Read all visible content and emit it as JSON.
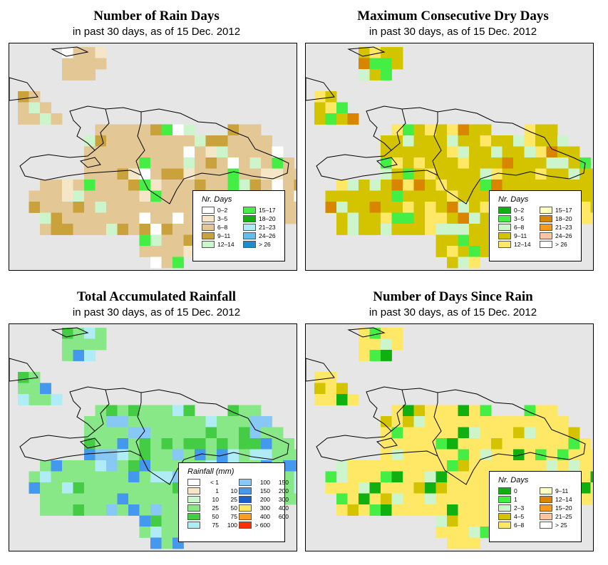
{
  "panels": [
    {
      "title": "Number of Rain Days",
      "subtitle": "in past 30 days, as of  15 Dec. 2012",
      "legend": {
        "title": "Nr. Days",
        "items": [
          {
            "label": "0–2",
            "color": "#ffffff"
          },
          {
            "label": "3–5",
            "color": "#f5e6c8"
          },
          {
            "label": "6–8",
            "color": "#e3c896"
          },
          {
            "label": "9–11",
            "color": "#c9a23c"
          },
          {
            "label": "12–14",
            "color": "#ccf5cc"
          },
          {
            "label": "15–17",
            "color": "#44ee44"
          },
          {
            "label": "18–20",
            "color": "#10b010"
          },
          {
            "label": "21–23",
            "color": "#b0ecf5"
          },
          {
            "label": "24–26",
            "color": "#60bff0"
          },
          {
            "label": "> 26",
            "color": "#1a8fd0"
          }
        ]
      }
    },
    {
      "title": "Maximum Consecutive Dry Days",
      "subtitle": "in past 30 days, as of  15 Dec. 2012",
      "legend": {
        "title": "Nr. Days",
        "items": [
          {
            "label": "0–2",
            "color": "#10b010"
          },
          {
            "label": "3–5",
            "color": "#44ee44"
          },
          {
            "label": "6–8",
            "color": "#ccf5cc"
          },
          {
            "label": "9–11",
            "color": "#d4c400"
          },
          {
            "label": "12–14",
            "color": "#ffe866"
          },
          {
            "label": "15–17",
            "color": "#ffffc0"
          },
          {
            "label": "18–20",
            "color": "#d98500"
          },
          {
            "label": "21–23",
            "color": "#f59a1a"
          },
          {
            "label": "24–26",
            "color": "#ffc4a0"
          },
          {
            "label": "> 26",
            "color": "#ffffff"
          }
        ]
      }
    },
    {
      "title": "Total Accumulated Rainfall",
      "subtitle": "in past 30 days, as of  15 Dec. 2012",
      "legend": {
        "title": "Rainfall (mm)",
        "items": [
          {
            "lo": "< 1",
            "hi": "",
            "color": "#ffffff"
          },
          {
            "lo": "1",
            "hi": "10",
            "color": "#f5e6c8"
          },
          {
            "lo": "10",
            "hi": "25",
            "color": "#ccf5cc"
          },
          {
            "lo": "25",
            "hi": "50",
            "color": "#88e888"
          },
          {
            "lo": "50",
            "hi": "75",
            "color": "#44cc44"
          },
          {
            "lo": "75",
            "hi": "100",
            "color": "#b0ecf5"
          },
          {
            "lo": "100",
            "hi": "150",
            "color": "#88c8f5"
          },
          {
            "lo": "150",
            "hi": "200",
            "color": "#4499ee"
          },
          {
            "lo": "200",
            "hi": "300",
            "color": "#1a5fd0"
          },
          {
            "lo": "300",
            "hi": "400",
            "color": "#ffe866"
          },
          {
            "lo": "400",
            "hi": "600",
            "color": "#f5a020"
          },
          {
            "lo": "> 600",
            "hi": "",
            "color": "#ff3000"
          }
        ]
      }
    },
    {
      "title": "Number of Days Since Rain",
      "subtitle": "in past 30 days, as of  15 Dec. 2012",
      "legend": {
        "title": "Nr. Days",
        "items": [
          {
            "label": "0",
            "color": "#10b010"
          },
          {
            "label": "1",
            "color": "#44ee44"
          },
          {
            "label": "2–3",
            "color": "#ccf5cc"
          },
          {
            "label": "4–5",
            "color": "#d4c400"
          },
          {
            "label": "6–8",
            "color": "#ffe866"
          },
          {
            "label": "9–11",
            "color": "#ffffc0"
          },
          {
            "label": "12–14",
            "color": "#d98500"
          },
          {
            "label": "15–20",
            "color": "#f59a1a"
          },
          {
            "label": "21–25",
            "color": "#ffc4a0"
          },
          {
            "label": "> 25",
            "color": "#ffffff"
          }
        ]
      }
    }
  ],
  "style": {
    "map_background": "#e6e6e6",
    "outline": "#000000"
  }
}
